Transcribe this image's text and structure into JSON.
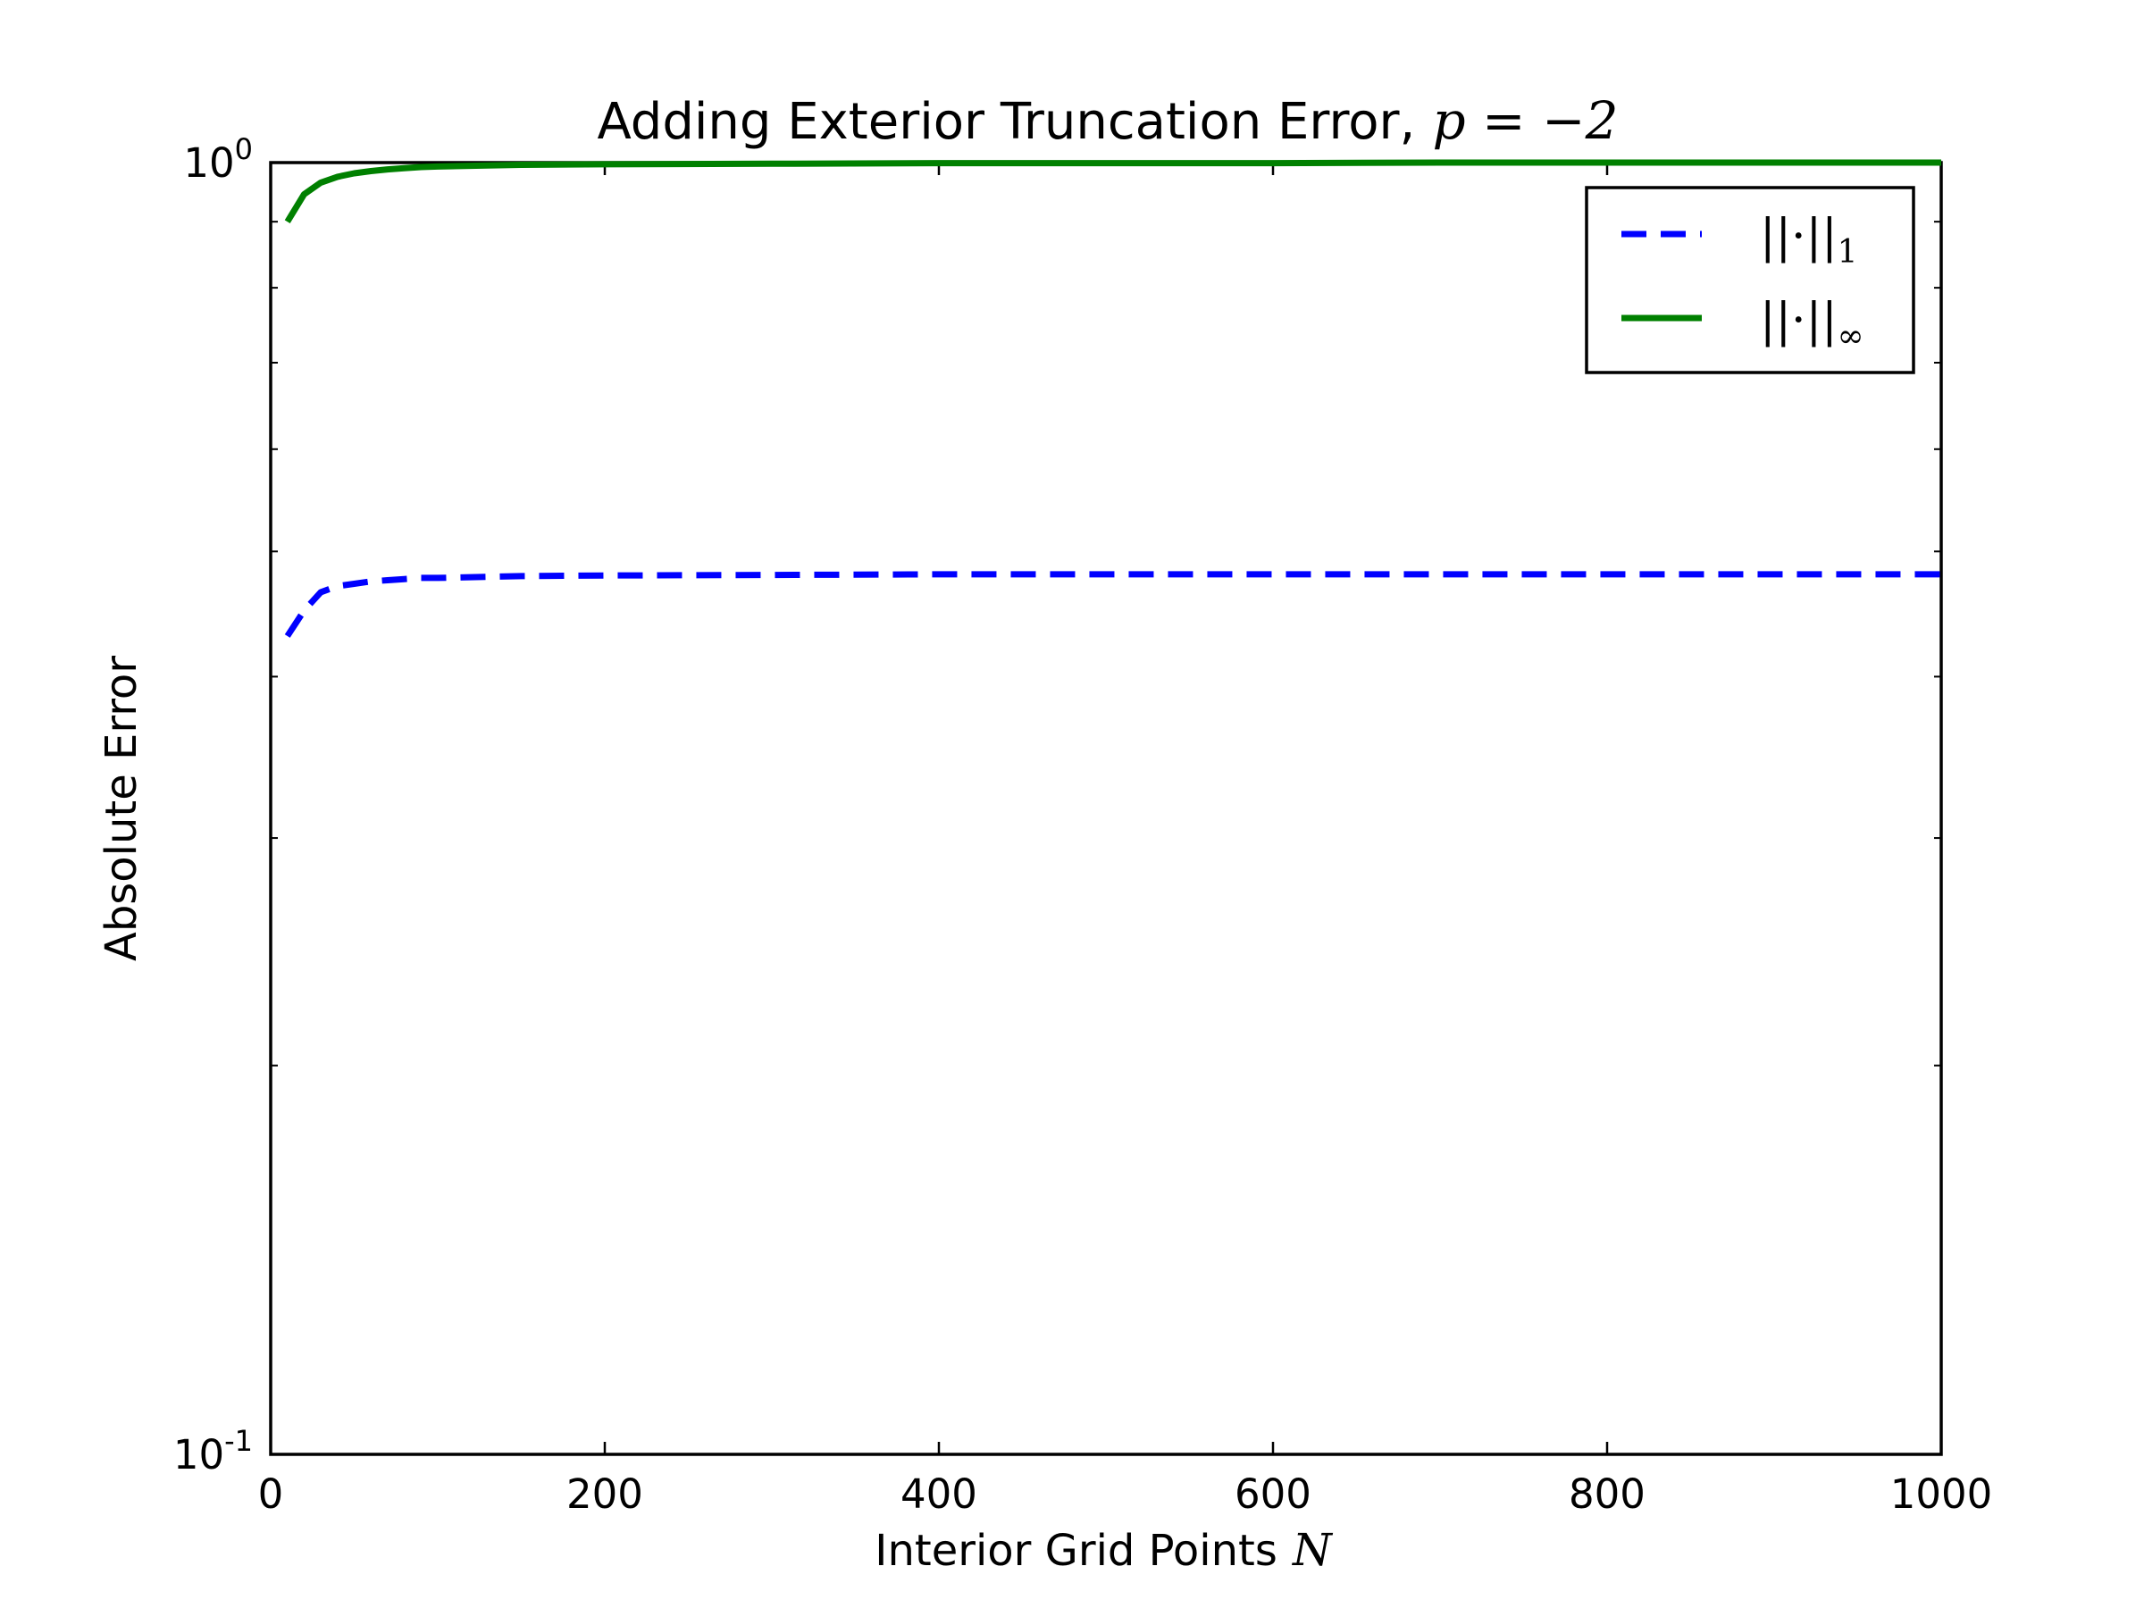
{
  "chart_data": {
    "type": "line",
    "title": "Adding Exterior Truncation Error,",
    "title_math": "p = −2",
    "xlabel": "Interior Grid Points",
    "xlabel_math": "N",
    "ylabel": "Absolute Error",
    "xlim": [
      0,
      1000
    ],
    "ylim": [
      0.1,
      1.0
    ],
    "yscale": "log",
    "grid": false,
    "x_ticks": [
      "0",
      "200",
      "400",
      "600",
      "800",
      "1000"
    ],
    "y_ticks": [
      {
        "base": "10",
        "exp": "-1"
      },
      {
        "base": "10",
        "exp": "0"
      }
    ],
    "legend_position": "top-right",
    "series": [
      {
        "name": "||·||1",
        "name_main": "||·||",
        "name_sub": "1",
        "color": "#0000ff",
        "style": "dashed",
        "x": [
          10,
          20,
          30,
          40,
          50,
          60,
          70,
          80,
          90,
          100,
          150,
          200,
          300,
          400,
          500,
          600,
          700,
          800,
          900,
          1000
        ],
        "y": [
          0.43,
          0.45,
          0.465,
          0.47,
          0.472,
          0.474,
          0.475,
          0.476,
          0.477,
          0.477,
          0.4785,
          0.479,
          0.4795,
          0.48,
          0.48,
          0.48,
          0.48,
          0.48,
          0.48,
          0.48
        ]
      },
      {
        "name": "||·||∞",
        "name_main": "||·||",
        "name_sub": "∞",
        "color": "#008000",
        "style": "solid",
        "x": [
          10,
          20,
          30,
          40,
          50,
          60,
          70,
          80,
          90,
          100,
          150,
          200,
          300,
          400,
          500,
          600,
          700,
          800,
          900,
          1000
        ],
        "y": [
          0.9,
          0.945,
          0.965,
          0.975,
          0.981,
          0.985,
          0.988,
          0.99,
          0.992,
          0.993,
          0.996,
          0.997,
          0.998,
          0.999,
          0.999,
          0.999,
          1.0,
          1.0,
          1.0,
          1.0
        ]
      }
    ]
  }
}
